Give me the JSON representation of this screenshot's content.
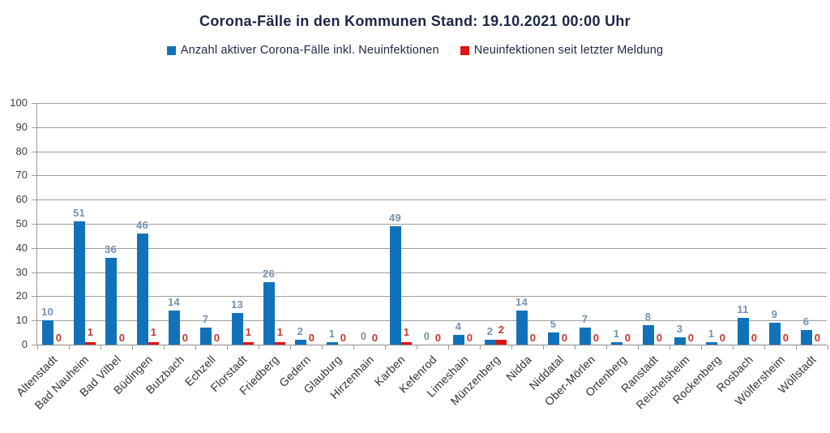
{
  "title": "Corona-Fälle in den Kommunen Stand: 19.10.2021 00:00 Uhr",
  "colors": {
    "bar_active": "#1272b9",
    "bar_new": "#e01212",
    "label_active": "#7492b3",
    "label_new": "#c0392b",
    "grid": "#a0a0a0",
    "axis_text": "#3f3f3f",
    "title_text": "#1b2744"
  },
  "chart_data": {
    "type": "bar",
    "title": "Corona-Fälle in den Kommunen Stand: 19.10.2021 00:00 Uhr",
    "legend_position": "top",
    "grid": true,
    "ylim": [
      0,
      100
    ],
    "ytick_step": 10,
    "xlabel": "",
    "ylabel": "",
    "categories": [
      "Altenstadt",
      "Bad Nauheim",
      "Bad Vilbel",
      "Büdingen",
      "Butzbach",
      "Echzell",
      "Florstadt",
      "Friedberg",
      "Gedern",
      "Glauburg",
      "Hirzenhain",
      "Karben",
      "Kefenrod",
      "Limeshain",
      "Münzenberg",
      "Nidda",
      "Niddatal",
      "Ober-Mörlen",
      "Ortenberg",
      "Ranstadt",
      "Reichelsheim",
      "Rockenberg",
      "Rosbach",
      "Wölfersheim",
      "Wöllstadt"
    ],
    "series": [
      {
        "name": "Anzahl aktiver Corona-Fälle inkl. Neuinfektionen",
        "color": "#1272b9",
        "values": [
          10,
          51,
          36,
          46,
          14,
          7,
          13,
          26,
          2,
          1,
          0,
          49,
          0,
          4,
          2,
          14,
          5,
          7,
          1,
          8,
          3,
          1,
          11,
          9,
          6
        ]
      },
      {
        "name": "Neuinfektionen seit letzter Meldung",
        "color": "#e01212",
        "values": [
          0,
          1,
          0,
          1,
          0,
          0,
          1,
          1,
          0,
          0,
          0,
          1,
          0,
          0,
          2,
          0,
          0,
          0,
          0,
          0,
          0,
          0,
          0,
          0,
          0
        ]
      }
    ]
  }
}
